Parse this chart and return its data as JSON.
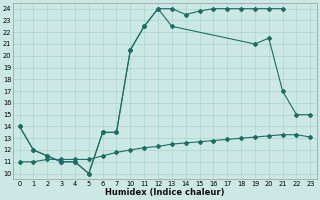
{
  "xlabel": "Humidex (Indice chaleur)",
  "bg_color": "#cce8e4",
  "line_color": "#1a6e64",
  "grid_color": "#aad4ce",
  "ylim": [
    9.5,
    24.5
  ],
  "yticks": [
    10,
    11,
    12,
    13,
    14,
    15,
    16,
    17,
    18,
    19,
    20,
    21,
    22,
    23,
    24
  ],
  "xlabels": [
    "0",
    "1",
    "2",
    "3",
    "4",
    "5",
    "6",
    "7",
    "10",
    "11",
    "12",
    "13",
    "14",
    "15",
    "16",
    "17",
    "18",
    "19",
    "20",
    "21",
    "22",
    "23"
  ],
  "series1_x": [
    0,
    1,
    2,
    3,
    4,
    5,
    6,
    7,
    8,
    9,
    10,
    11,
    12,
    13,
    14,
    15,
    16,
    17,
    18,
    19
  ],
  "series1_y": [
    14,
    12,
    11.5,
    11,
    11,
    10,
    13.5,
    13.5,
    20.5,
    22.5,
    24,
    24,
    23.5,
    23.8,
    24,
    24,
    24,
    24,
    24,
    24
  ],
  "series2_x": [
    0,
    1,
    2,
    3,
    4,
    5,
    6,
    7,
    8,
    9,
    10,
    11,
    17,
    18,
    19,
    20,
    21
  ],
  "series2_y": [
    14,
    12,
    11.5,
    11,
    11,
    10,
    13.5,
    13.5,
    20.5,
    22.5,
    24,
    22.5,
    21,
    21.5,
    17,
    15,
    15
  ],
  "series3_x": [
    0,
    1,
    2,
    3,
    4,
    5,
    6,
    7,
    8,
    9,
    10,
    11,
    12,
    13,
    14,
    15,
    16,
    17,
    18,
    19,
    20,
    21
  ],
  "series3_y": [
    11,
    11,
    11.2,
    11.2,
    11.2,
    11.2,
    11.5,
    11.8,
    12.0,
    12.2,
    12.3,
    12.5,
    12.6,
    12.7,
    12.8,
    12.9,
    13.0,
    13.1,
    13.2,
    13.3,
    13.3,
    13.1
  ]
}
